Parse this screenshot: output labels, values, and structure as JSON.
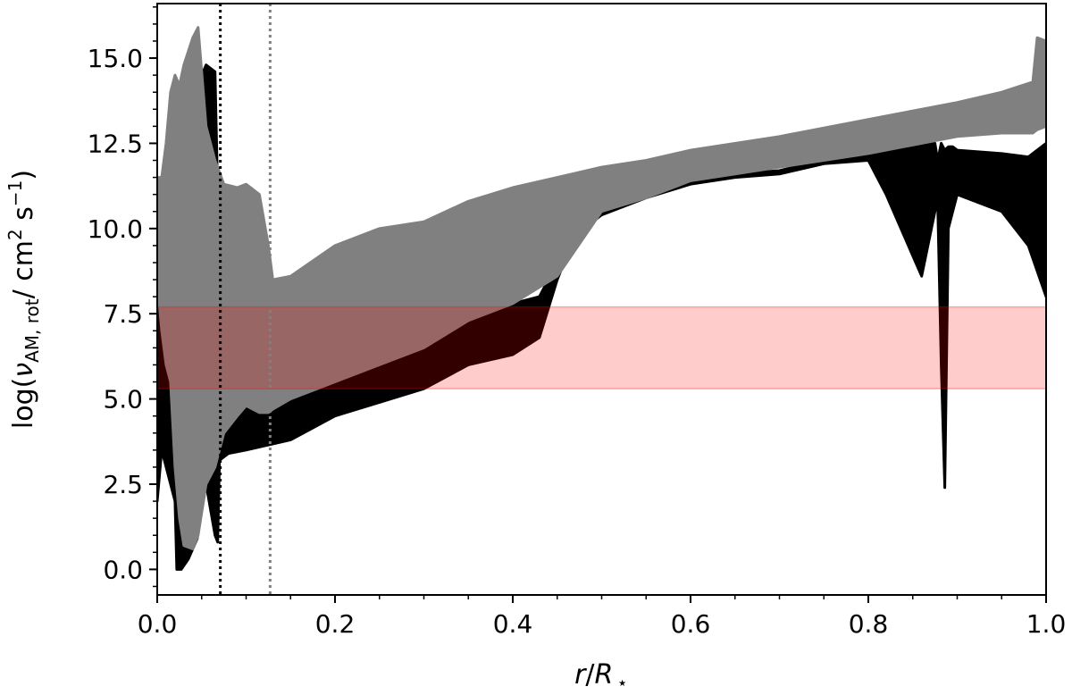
{
  "chart_data": {
    "type": "line",
    "title": "",
    "xlabel": {
      "var": "r",
      "slash": "/",
      "sym": "R",
      "sub": "⋆"
    },
    "ylabel": {
      "pre": "log(",
      "nu": "ν",
      "sub": "AM, rot",
      "units_a": "/ cm",
      "sup2": "2",
      "units_b": " s",
      "supm1": "−1",
      "post": ")"
    },
    "xlim": [
      0.0,
      1.0
    ],
    "ylim": [
      -0.75,
      16.6
    ],
    "xticks": [
      0.0,
      0.2,
      0.4,
      0.6,
      0.8,
      1.0
    ],
    "xtick_labels": [
      "0.0",
      "0.2",
      "0.4",
      "0.6",
      "0.8",
      "1.0"
    ],
    "yticks": [
      0.0,
      2.5,
      5.0,
      7.5,
      10.0,
      12.5,
      15.0
    ],
    "ytick_labels": [
      "0.0",
      "2.5",
      "5.0",
      "7.5",
      "10.0",
      "12.5",
      "15.0"
    ],
    "minor_x_step": 0.05,
    "minor_y_step": 0.5,
    "grid": false,
    "band": {
      "y_low": 5.3,
      "y_high": 7.7,
      "color": "#ff0000",
      "opacity": 0.2
    },
    "vlines": [
      {
        "x": 0.071,
        "color": "#000000",
        "style": "dotted"
      },
      {
        "x": 0.127,
        "color": "#808080",
        "style": "dotted"
      }
    ],
    "series": [
      {
        "color": "#000000",
        "style": "filled-envelope",
        "x": [
          0.0,
          0.005,
          0.02,
          0.022,
          0.027,
          0.035,
          0.045,
          0.055,
          0.065,
          0.068,
          0.07,
          0.08,
          0.1,
          0.15,
          0.2,
          0.25,
          0.3,
          0.35,
          0.4,
          0.43,
          0.45,
          0.47,
          0.5,
          0.55,
          0.6,
          0.65,
          0.7,
          0.75,
          0.8,
          0.82,
          0.86,
          0.875,
          0.878,
          0.882,
          0.886,
          0.89,
          0.895,
          0.9,
          0.95,
          0.98,
          1.0
        ],
        "upper": [
          10.0,
          10.5,
          10.0,
          9.5,
          12.0,
          13.5,
          14.2,
          14.8,
          14.6,
          11.0,
          4.8,
          4.9,
          5.5,
          6.2,
          6.8,
          7.0,
          7.2,
          7.8,
          7.8,
          8.0,
          9.0,
          9.8,
          10.5,
          11.0,
          11.4,
          11.6,
          11.7,
          12.0,
          12.3,
          12.3,
          12.5,
          12.5,
          12.0,
          12.5,
          12.3,
          12.4,
          12.4,
          12.3,
          12.2,
          12.1,
          12.5
        ],
        "lower": [
          2.0,
          3.5,
          2.0,
          0.0,
          0.0,
          0.3,
          0.9,
          2.5,
          1.0,
          0.8,
          3.2,
          3.4,
          3.5,
          3.8,
          4.5,
          4.9,
          5.3,
          6.0,
          6.3,
          6.8,
          8.5,
          9.8,
          10.4,
          10.9,
          11.3,
          11.5,
          11.6,
          11.9,
          12.0,
          11.0,
          8.6,
          10.5,
          10.8,
          6.0,
          2.4,
          10.0,
          10.5,
          11.0,
          10.5,
          9.5,
          8.0
        ]
      },
      {
        "color": "#808080",
        "style": "filled-envelope",
        "x": [
          0.0,
          0.005,
          0.01,
          0.015,
          0.02,
          0.025,
          0.03,
          0.04,
          0.046,
          0.055,
          0.065,
          0.075,
          0.09,
          0.1,
          0.115,
          0.125,
          0.13,
          0.15,
          0.2,
          0.25,
          0.3,
          0.35,
          0.4,
          0.45,
          0.5,
          0.55,
          0.6,
          0.7,
          0.8,
          0.9,
          0.95,
          0.985,
          0.99,
          1.0
        ],
        "upper": [
          11.5,
          11.5,
          12.5,
          14.0,
          14.5,
          14.2,
          14.8,
          15.6,
          15.9,
          13.0,
          12.0,
          11.3,
          11.2,
          11.3,
          11.0,
          9.5,
          8.5,
          8.6,
          9.5,
          10.0,
          10.2,
          10.8,
          11.2,
          11.5,
          11.8,
          12.0,
          12.3,
          12.7,
          13.2,
          13.7,
          14.0,
          14.3,
          15.6,
          15.5
        ],
        "lower": [
          8.5,
          7.0,
          6.0,
          5.5,
          3.0,
          1.5,
          0.7,
          0.6,
          1.0,
          2.5,
          3.0,
          4.0,
          4.5,
          4.8,
          4.6,
          4.6,
          4.7,
          5.0,
          5.5,
          6.0,
          6.5,
          7.3,
          7.8,
          8.6,
          10.5,
          10.9,
          11.4,
          11.8,
          12.2,
          12.7,
          12.8,
          12.8,
          12.9,
          13.0
        ]
      }
    ]
  }
}
